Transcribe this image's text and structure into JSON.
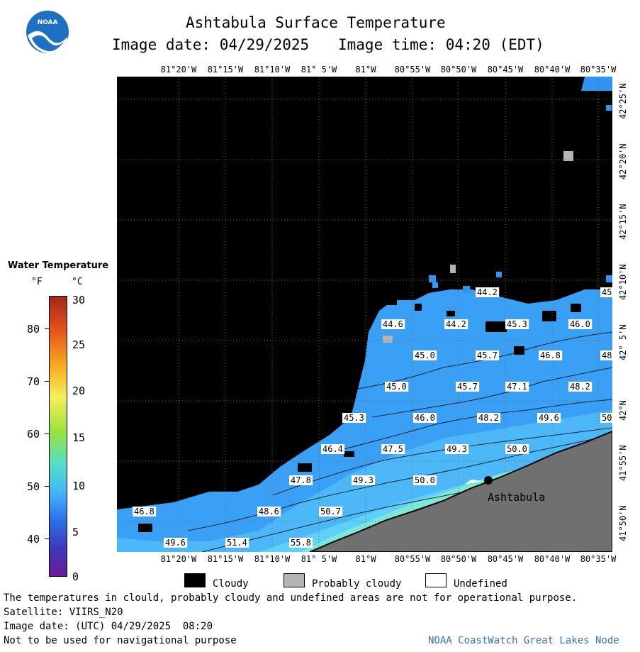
{
  "title": "Ashtabula Surface Temperature",
  "image_date_label": "Image date: 04/29/2025",
  "image_time_label": "Image time: 04:20 (EDT)",
  "logo_text": "NOAA",
  "colorbar": {
    "title": "Water Temperature",
    "unit_f": "°F",
    "unit_c": "°C",
    "f_ticks": [
      "80",
      "70",
      "60",
      "50",
      "40"
    ],
    "c_ticks": [
      "30",
      "25",
      "20",
      "15",
      "10",
      "5",
      "0"
    ],
    "range_c": [
      0,
      30
    ]
  },
  "longitude_labels": [
    "81°20'W",
    "81°15'W",
    "81°10'W",
    "81° 5'W",
    "81°W",
    "80°55'W",
    "80°50'W",
    "80°45'W",
    "80°40'W",
    "80°35'W"
  ],
  "bottom_longitude_labels": [
    "81°20'W",
    "81°15'W",
    "81°10'W",
    "81° 5'W",
    "81°W",
    "80°55'W",
    "80°50'W",
    "80°45'W",
    "80°40'W",
    "80°35'W"
  ],
  "latitude_labels": [
    "42°25'N",
    "42°20'N",
    "42°15'N",
    "42°10'N",
    "42° 5'N",
    "42°N",
    "41°55'N",
    "41°50'N"
  ],
  "city": {
    "name": "Ashtabula"
  },
  "temperature_labels": [
    {
      "v": "44.2",
      "x": 0,
      "y": 0
    },
    {
      "v": "45",
      "x": 0,
      "y": 0
    },
    {
      "v": "44.6",
      "x": 0,
      "y": 0
    },
    {
      "v": "44.2",
      "x": 0,
      "y": 0
    },
    {
      "v": "45.3",
      "x": 0,
      "y": 0
    },
    {
      "v": "46.0",
      "x": 0,
      "y": 0
    },
    {
      "v": "45.0",
      "x": 0,
      "y": 0
    },
    {
      "v": "45.7",
      "x": 0,
      "y": 0
    },
    {
      "v": "46.8",
      "x": 0,
      "y": 0
    },
    {
      "v": "48",
      "x": 0,
      "y": 0
    },
    {
      "v": "45.0",
      "x": 0,
      "y": 0
    },
    {
      "v": "45.7",
      "x": 0,
      "y": 0
    },
    {
      "v": "47.1",
      "x": 0,
      "y": 0
    },
    {
      "v": "48.2",
      "x": 0,
      "y": 0
    },
    {
      "v": "45.3",
      "x": 0,
      "y": 0
    },
    {
      "v": "46.0",
      "x": 0,
      "y": 0
    },
    {
      "v": "48.2",
      "x": 0,
      "y": 0
    },
    {
      "v": "49.6",
      "x": 0,
      "y": 0
    },
    {
      "v": "50",
      "x": 0,
      "y": 0
    },
    {
      "v": "46.4",
      "x": 0,
      "y": 0
    },
    {
      "v": "47.5",
      "x": 0,
      "y": 0
    },
    {
      "v": "49.3",
      "x": 0,
      "y": 0
    },
    {
      "v": "50.0",
      "x": 0,
      "y": 0
    },
    {
      "v": "47.8",
      "x": 0,
      "y": 0
    },
    {
      "v": "49.3",
      "x": 0,
      "y": 0
    },
    {
      "v": "50.0",
      "x": 0,
      "y": 0
    },
    {
      "v": "46.8",
      "x": 0,
      "y": 0
    },
    {
      "v": "48.6",
      "x": 0,
      "y": 0
    },
    {
      "v": "50.7",
      "x": 0,
      "y": 0
    },
    {
      "v": "49.6",
      "x": 0,
      "y": 0
    },
    {
      "v": "51.4",
      "x": 0,
      "y": 0
    },
    {
      "v": "55.8",
      "x": 0,
      "y": 0
    }
  ],
  "legend": {
    "cloudy": "Cloudy",
    "probably_cloudy": "Probably cloudy",
    "undefined": "Undefined",
    "colors": {
      "cloudy": "#000000",
      "probably_cloudy": "#b4b4b4",
      "undefined": "#ffffff",
      "land": "#707070"
    }
  },
  "footer": {
    "disclaimer": "The temperatures in clould, probably cloudy and undefined areas are not for operational purpose.",
    "satellite": "Satellite: VIIRS_N20",
    "utc_date": "Image date: (UTC) 04/29/2025  08:20",
    "nav_warning": "Not to be used for navigational purpose",
    "credit": "NOAA CoastWatch Great Lakes Node"
  }
}
